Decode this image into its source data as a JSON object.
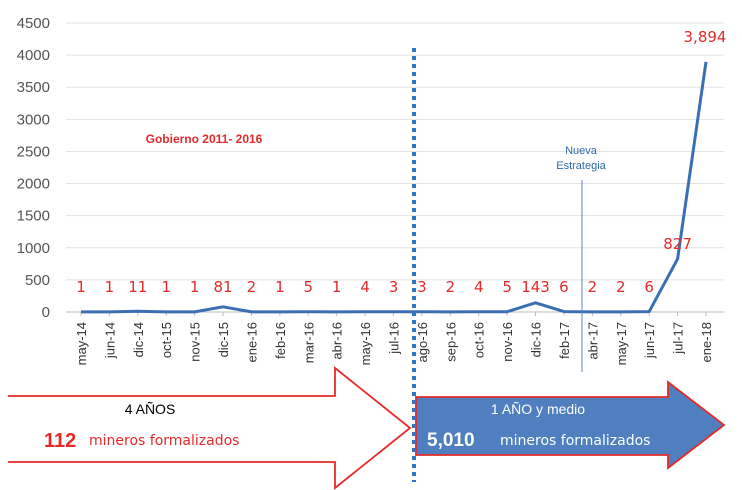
{
  "chart_data": {
    "type": "line",
    "categories": [
      "may-14",
      "jun-14",
      "dic-14",
      "oct-15",
      "nov-15",
      "dic-15",
      "ene-16",
      "feb-16",
      "mar-16",
      "abr-16",
      "may-16",
      "jul-16",
      "ago-16",
      "sep-16",
      "oct-16",
      "nov-16",
      "dic-16",
      "feb-17",
      "abr-17",
      "may-17",
      "jun-17",
      "jul-17",
      "ene-18"
    ],
    "series": [
      {
        "values": [
          1,
          1,
          11,
          1,
          1,
          81,
          2,
          1,
          5,
          1,
          4,
          3,
          3,
          2,
          4,
          5,
          143,
          6,
          2,
          2,
          6,
          827,
          3894
        ]
      }
    ],
    "data_labels": [
      "1",
      "1",
      "11",
      "1",
      "1",
      "81",
      "2",
      "1",
      "5",
      "1",
      "4",
      "3",
      "3",
      "2",
      "4",
      "5",
      "143",
      "6",
      "2",
      "2",
      "6",
      "827",
      "3,894"
    ],
    "yticks": [
      "0",
      "500",
      "1000",
      "1500",
      "2000",
      "2500",
      "3000",
      "3500",
      "4000",
      "4500"
    ],
    "ylim": [
      0,
      4500
    ],
    "grid": true,
    "line_color": "#3a6fb4",
    "label_color": "#e52a2a",
    "annotations": {
      "gobierno": "Gobierno 2011- 2016",
      "nueva_line1": "Nueva",
      "nueva_line2": "Estrategia"
    }
  },
  "periods": {
    "left": {
      "title": "4 AÑOS",
      "count": "112",
      "text": "mineros formalizados"
    },
    "right": {
      "title": "1 AÑO y medio",
      "count": "5,010",
      "text": "mineros formalizados"
    }
  },
  "colors": {
    "red": "#e52a2a",
    "blue_arrow": "#4f7fbf",
    "divider": "#2f74c8"
  }
}
